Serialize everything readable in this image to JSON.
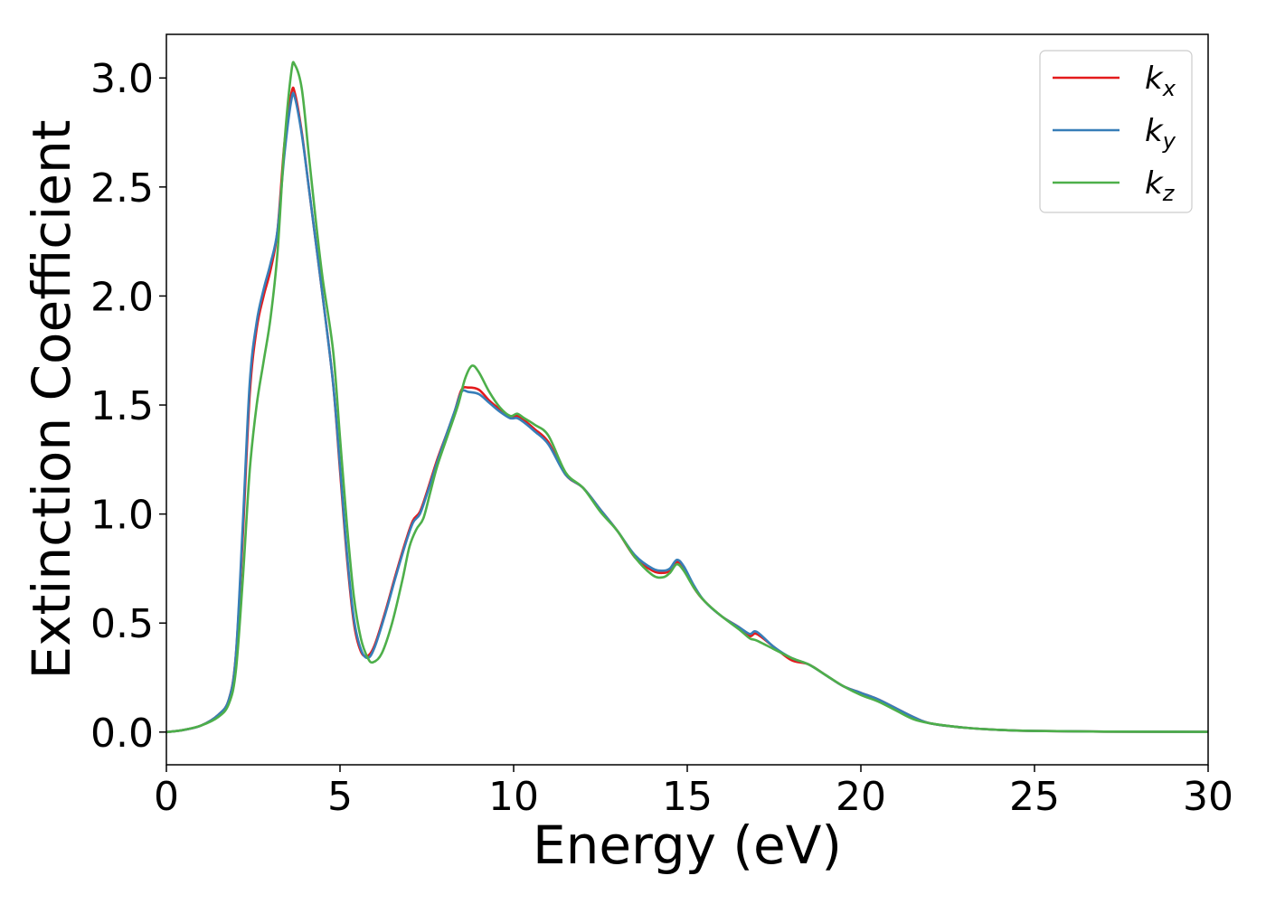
{
  "chart_data": {
    "type": "line",
    "title": "",
    "xlabel": "Energy (eV)",
    "ylabel": "Extinction Coefficient",
    "xlim": [
      0,
      30
    ],
    "ylim": [
      -0.15,
      3.2
    ],
    "xticks": [
      0,
      5,
      10,
      15,
      20,
      25,
      30
    ],
    "xtick_labels": [
      "0",
      "5",
      "10",
      "15",
      "20",
      "25",
      "30"
    ],
    "yticks": [
      0.0,
      0.5,
      1.0,
      1.5,
      2.0,
      2.5,
      3.0
    ],
    "ytick_labels": [
      "0.0",
      "0.5",
      "1.0",
      "1.5",
      "2.0",
      "2.5",
      "3.0"
    ],
    "grid": false,
    "legend_position": "top-right",
    "series": [
      {
        "name": "k_x",
        "label_base": "k",
        "label_sub": "x",
        "color": "#e41a1c",
        "points": [
          [
            0,
            0.0
          ],
          [
            0.5,
            0.01
          ],
          [
            1.0,
            0.03
          ],
          [
            1.5,
            0.08
          ],
          [
            1.8,
            0.15
          ],
          [
            2.0,
            0.35
          ],
          [
            2.2,
            0.9
          ],
          [
            2.4,
            1.55
          ],
          [
            2.6,
            1.85
          ],
          [
            2.8,
            2.0
          ],
          [
            3.0,
            2.12
          ],
          [
            3.2,
            2.3
          ],
          [
            3.4,
            2.7
          ],
          [
            3.6,
            2.93
          ],
          [
            3.7,
            2.93
          ],
          [
            3.9,
            2.75
          ],
          [
            4.1,
            2.5
          ],
          [
            4.3,
            2.25
          ],
          [
            4.5,
            2.0
          ],
          [
            4.8,
            1.6
          ],
          [
            5.0,
            1.2
          ],
          [
            5.2,
            0.8
          ],
          [
            5.4,
            0.5
          ],
          [
            5.6,
            0.37
          ],
          [
            5.8,
            0.35
          ],
          [
            6.0,
            0.4
          ],
          [
            6.3,
            0.55
          ],
          [
            6.6,
            0.72
          ],
          [
            6.9,
            0.88
          ],
          [
            7.1,
            0.97
          ],
          [
            7.3,
            1.01
          ],
          [
            7.5,
            1.1
          ],
          [
            7.8,
            1.25
          ],
          [
            8.1,
            1.38
          ],
          [
            8.3,
            1.47
          ],
          [
            8.5,
            1.57
          ],
          [
            8.7,
            1.58
          ],
          [
            9.0,
            1.57
          ],
          [
            9.3,
            1.52
          ],
          [
            9.6,
            1.48
          ],
          [
            9.9,
            1.44
          ],
          [
            10.1,
            1.45
          ],
          [
            10.3,
            1.43
          ],
          [
            10.6,
            1.39
          ],
          [
            11.0,
            1.33
          ],
          [
            11.5,
            1.18
          ],
          [
            12.0,
            1.12
          ],
          [
            12.5,
            1.02
          ],
          [
            13.0,
            0.92
          ],
          [
            13.5,
            0.8
          ],
          [
            14.0,
            0.74
          ],
          [
            14.3,
            0.73
          ],
          [
            14.5,
            0.74
          ],
          [
            14.7,
            0.78
          ],
          [
            14.9,
            0.75
          ],
          [
            15.2,
            0.66
          ],
          [
            15.5,
            0.6
          ],
          [
            16.0,
            0.53
          ],
          [
            16.5,
            0.48
          ],
          [
            16.8,
            0.44
          ],
          [
            17.0,
            0.45
          ],
          [
            17.5,
            0.39
          ],
          [
            18.0,
            0.33
          ],
          [
            18.5,
            0.31
          ],
          [
            19.0,
            0.26
          ],
          [
            19.5,
            0.21
          ],
          [
            20.0,
            0.18
          ],
          [
            20.5,
            0.15
          ],
          [
            21.0,
            0.11
          ],
          [
            21.5,
            0.07
          ],
          [
            22.0,
            0.04
          ],
          [
            23.0,
            0.02
          ],
          [
            24.0,
            0.01
          ],
          [
            25.0,
            0.005
          ],
          [
            27.0,
            0.002
          ],
          [
            30.0,
            0.001
          ]
        ]
      },
      {
        "name": "k_y",
        "label_base": "k",
        "label_sub": "y",
        "color": "#377eb8",
        "points": [
          [
            0,
            0.0
          ],
          [
            0.5,
            0.01
          ],
          [
            1.0,
            0.03
          ],
          [
            1.5,
            0.08
          ],
          [
            1.8,
            0.15
          ],
          [
            2.0,
            0.35
          ],
          [
            2.2,
            0.95
          ],
          [
            2.4,
            1.6
          ],
          [
            2.6,
            1.88
          ],
          [
            2.8,
            2.03
          ],
          [
            3.0,
            2.15
          ],
          [
            3.2,
            2.3
          ],
          [
            3.4,
            2.65
          ],
          [
            3.6,
            2.9
          ],
          [
            3.7,
            2.91
          ],
          [
            3.9,
            2.74
          ],
          [
            4.1,
            2.5
          ],
          [
            4.3,
            2.25
          ],
          [
            4.5,
            2.0
          ],
          [
            4.8,
            1.6
          ],
          [
            5.0,
            1.22
          ],
          [
            5.2,
            0.82
          ],
          [
            5.4,
            0.52
          ],
          [
            5.6,
            0.38
          ],
          [
            5.8,
            0.34
          ],
          [
            6.0,
            0.39
          ],
          [
            6.3,
            0.54
          ],
          [
            6.6,
            0.71
          ],
          [
            6.9,
            0.87
          ],
          [
            7.1,
            0.96
          ],
          [
            7.3,
            1.0
          ],
          [
            7.5,
            1.09
          ],
          [
            7.8,
            1.24
          ],
          [
            8.1,
            1.38
          ],
          [
            8.3,
            1.47
          ],
          [
            8.5,
            1.56
          ],
          [
            8.7,
            1.56
          ],
          [
            9.0,
            1.55
          ],
          [
            9.3,
            1.51
          ],
          [
            9.6,
            1.47
          ],
          [
            9.9,
            1.44
          ],
          [
            10.1,
            1.44
          ],
          [
            10.3,
            1.42
          ],
          [
            10.6,
            1.38
          ],
          [
            11.0,
            1.32
          ],
          [
            11.5,
            1.18
          ],
          [
            12.0,
            1.12
          ],
          [
            12.5,
            1.02
          ],
          [
            13.0,
            0.92
          ],
          [
            13.5,
            0.81
          ],
          [
            14.0,
            0.75
          ],
          [
            14.3,
            0.74
          ],
          [
            14.5,
            0.75
          ],
          [
            14.7,
            0.79
          ],
          [
            14.9,
            0.76
          ],
          [
            15.2,
            0.67
          ],
          [
            15.5,
            0.6
          ],
          [
            16.0,
            0.53
          ],
          [
            16.5,
            0.48
          ],
          [
            16.8,
            0.45
          ],
          [
            17.0,
            0.46
          ],
          [
            17.5,
            0.39
          ],
          [
            18.0,
            0.34
          ],
          [
            18.5,
            0.31
          ],
          [
            19.0,
            0.26
          ],
          [
            19.5,
            0.21
          ],
          [
            20.0,
            0.18
          ],
          [
            20.5,
            0.15
          ],
          [
            21.0,
            0.11
          ],
          [
            21.5,
            0.07
          ],
          [
            22.0,
            0.04
          ],
          [
            23.0,
            0.02
          ],
          [
            24.0,
            0.01
          ],
          [
            25.0,
            0.005
          ],
          [
            27.0,
            0.002
          ],
          [
            30.0,
            0.001
          ]
        ]
      },
      {
        "name": "k_z",
        "label_base": "k",
        "label_sub": "z",
        "color": "#4daf4a",
        "points": [
          [
            0,
            0.0
          ],
          [
            0.5,
            0.01
          ],
          [
            1.0,
            0.03
          ],
          [
            1.5,
            0.07
          ],
          [
            1.8,
            0.13
          ],
          [
            2.0,
            0.28
          ],
          [
            2.2,
            0.7
          ],
          [
            2.4,
            1.2
          ],
          [
            2.6,
            1.5
          ],
          [
            2.8,
            1.7
          ],
          [
            3.0,
            1.9
          ],
          [
            3.2,
            2.2
          ],
          [
            3.4,
            2.7
          ],
          [
            3.6,
            3.03
          ],
          [
            3.7,
            3.06
          ],
          [
            3.9,
            2.95
          ],
          [
            4.1,
            2.65
          ],
          [
            4.3,
            2.35
          ],
          [
            4.5,
            2.08
          ],
          [
            4.8,
            1.75
          ],
          [
            5.0,
            1.35
          ],
          [
            5.2,
            0.95
          ],
          [
            5.4,
            0.62
          ],
          [
            5.6,
            0.43
          ],
          [
            5.8,
            0.34
          ],
          [
            5.95,
            0.32
          ],
          [
            6.2,
            0.36
          ],
          [
            6.5,
            0.5
          ],
          [
            6.8,
            0.7
          ],
          [
            7.0,
            0.85
          ],
          [
            7.2,
            0.93
          ],
          [
            7.4,
            0.98
          ],
          [
            7.6,
            1.1
          ],
          [
            7.8,
            1.22
          ],
          [
            8.1,
            1.36
          ],
          [
            8.4,
            1.5
          ],
          [
            8.6,
            1.62
          ],
          [
            8.8,
            1.68
          ],
          [
            9.0,
            1.65
          ],
          [
            9.3,
            1.56
          ],
          [
            9.6,
            1.49
          ],
          [
            9.9,
            1.45
          ],
          [
            10.1,
            1.46
          ],
          [
            10.3,
            1.44
          ],
          [
            10.6,
            1.41
          ],
          [
            11.0,
            1.36
          ],
          [
            11.5,
            1.19
          ],
          [
            12.0,
            1.12
          ],
          [
            12.5,
            1.01
          ],
          [
            13.0,
            0.92
          ],
          [
            13.5,
            0.8
          ],
          [
            14.0,
            0.72
          ],
          [
            14.3,
            0.71
          ],
          [
            14.5,
            0.73
          ],
          [
            14.7,
            0.77
          ],
          [
            14.9,
            0.74
          ],
          [
            15.2,
            0.66
          ],
          [
            15.5,
            0.6
          ],
          [
            16.0,
            0.53
          ],
          [
            16.5,
            0.47
          ],
          [
            16.8,
            0.43
          ],
          [
            17.0,
            0.42
          ],
          [
            17.5,
            0.38
          ],
          [
            18.0,
            0.34
          ],
          [
            18.5,
            0.31
          ],
          [
            19.0,
            0.26
          ],
          [
            19.5,
            0.21
          ],
          [
            20.0,
            0.17
          ],
          [
            20.5,
            0.14
          ],
          [
            21.0,
            0.1
          ],
          [
            21.5,
            0.06
          ],
          [
            22.0,
            0.04
          ],
          [
            23.0,
            0.02
          ],
          [
            24.0,
            0.01
          ],
          [
            25.0,
            0.005
          ],
          [
            27.0,
            0.002
          ],
          [
            30.0,
            0.001
          ]
        ]
      }
    ]
  }
}
